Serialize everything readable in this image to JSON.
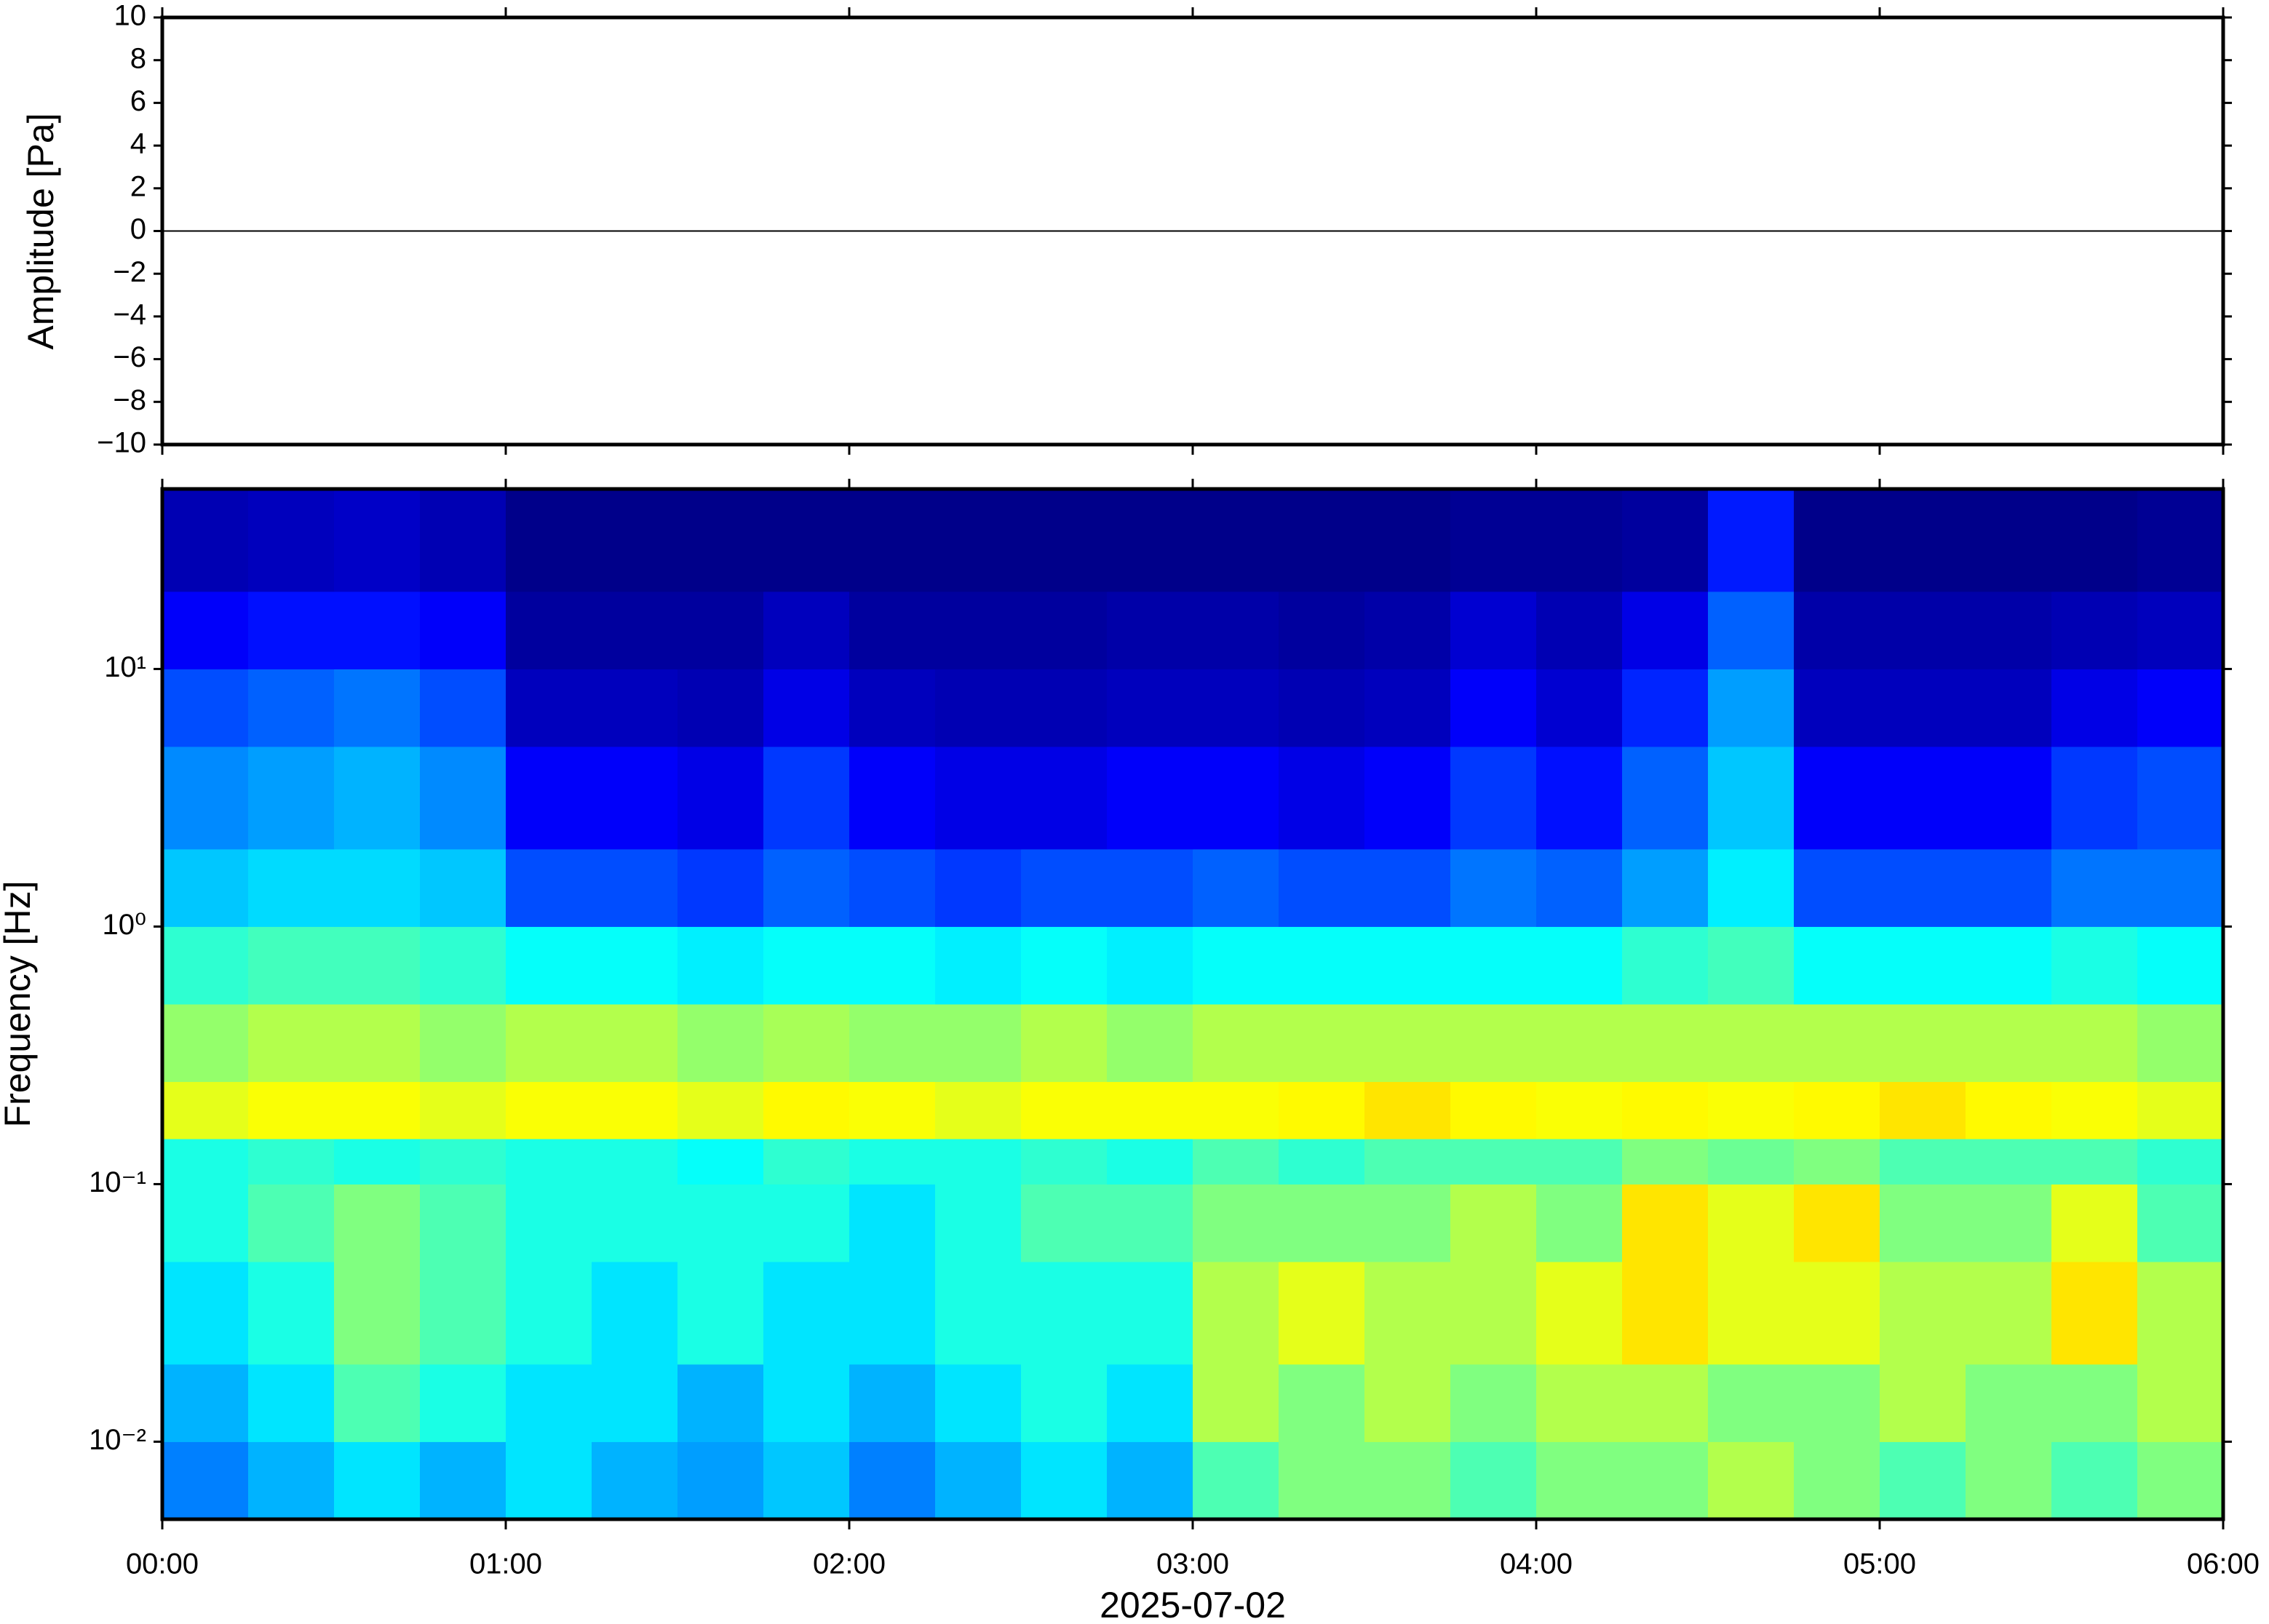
{
  "chart_data": [
    {
      "type": "line",
      "ylabel": "Amplitude [Pa]",
      "color": "#000000",
      "x": [
        0,
        0.5,
        1,
        1.5,
        2,
        2.5,
        3,
        3.5,
        4,
        4.5,
        5,
        5.5,
        6
      ],
      "values": [
        0,
        0,
        0,
        0,
        0,
        0,
        0,
        0,
        0,
        0,
        0,
        0,
        0
      ],
      "xlim": [
        0,
        6
      ],
      "ylim": [
        -10,
        10
      ],
      "yticks": [
        {
          "value": -10,
          "label": "−10"
        },
        {
          "value": -8,
          "label": "−8"
        },
        {
          "value": -6,
          "label": "−6"
        },
        {
          "value": -4,
          "label": "−4"
        },
        {
          "value": -2,
          "label": "−2"
        },
        0,
        2,
        4,
        6,
        8,
        10
      ]
    },
    {
      "type": "heatmap",
      "ylabel": "Frequency [Hz]",
      "xlabel": "2025-07-02",
      "log_y": true,
      "colormap": "jet",
      "xlim": [
        0,
        6
      ],
      "ylim": [
        0.005,
        50
      ],
      "xticks": [
        {
          "value": 0,
          "label": "00:00"
        },
        {
          "value": 1,
          "label": "01:00"
        },
        {
          "value": 2,
          "label": "02:00"
        },
        {
          "value": 3,
          "label": "03:00"
        },
        {
          "value": 4,
          "label": "04:00"
        },
        {
          "value": 5,
          "label": "05:00"
        },
        {
          "value": 6,
          "label": "06:00"
        }
      ],
      "yticks": [
        {
          "value": 0.01,
          "label": "10⁻²"
        },
        {
          "value": 0.1,
          "label": "10⁻¹"
        },
        {
          "value": 1,
          "label": "10⁰"
        },
        {
          "value": 10,
          "label": "10¹"
        }
      ],
      "x_bins": [
        0,
        0.25,
        0.5,
        0.75,
        1,
        1.25,
        1.5,
        1.75,
        2,
        2.25,
        2.5,
        2.75,
        3,
        3.25,
        3.5,
        3.75,
        4,
        4.25,
        4.5,
        4.75,
        5,
        5.25,
        5.5,
        5.75,
        6
      ],
      "y_bins": [
        0.005,
        0.01,
        0.02,
        0.05,
        0.1,
        0.15,
        0.25,
        0.5,
        1,
        2,
        5,
        10,
        20,
        50
      ],
      "values": [
        [
          0.25,
          0.3,
          0.35,
          0.3,
          0.35,
          0.3,
          0.28,
          0.32,
          0.25,
          0.3,
          0.35,
          0.3,
          0.45,
          0.5,
          0.5,
          0.45,
          0.5,
          0.5,
          0.55,
          0.5,
          0.45,
          0.5,
          0.45,
          0.5
        ],
        [
          0.3,
          0.35,
          0.45,
          0.4,
          0.35,
          0.35,
          0.3,
          0.35,
          0.3,
          0.35,
          0.4,
          0.35,
          0.55,
          0.5,
          0.55,
          0.5,
          0.55,
          0.55,
          0.5,
          0.5,
          0.55,
          0.5,
          0.5,
          0.55
        ],
        [
          0.35,
          0.4,
          0.5,
          0.45,
          0.4,
          0.35,
          0.4,
          0.35,
          0.35,
          0.4,
          0.4,
          0.4,
          0.55,
          0.6,
          0.55,
          0.55,
          0.6,
          0.65,
          0.6,
          0.6,
          0.55,
          0.55,
          0.65,
          0.55
        ],
        [
          0.4,
          0.45,
          0.5,
          0.45,
          0.4,
          0.4,
          0.4,
          0.4,
          0.35,
          0.4,
          0.45,
          0.45,
          0.5,
          0.5,
          0.5,
          0.55,
          0.5,
          0.65,
          0.6,
          0.65,
          0.5,
          0.5,
          0.6,
          0.45
        ],
        [
          0.4,
          0.42,
          0.4,
          0.42,
          0.4,
          0.4,
          0.38,
          0.42,
          0.4,
          0.4,
          0.42,
          0.4,
          0.45,
          0.42,
          0.45,
          0.45,
          0.45,
          0.5,
          0.48,
          0.5,
          0.45,
          0.45,
          0.45,
          0.42
        ],
        [
          0.6,
          0.62,
          0.62,
          0.6,
          0.62,
          0.62,
          0.6,
          0.63,
          0.62,
          0.6,
          0.62,
          0.62,
          0.62,
          0.63,
          0.65,
          0.63,
          0.62,
          0.63,
          0.62,
          0.63,
          0.65,
          0.63,
          0.62,
          0.6
        ],
        [
          0.52,
          0.55,
          0.55,
          0.52,
          0.55,
          0.55,
          0.52,
          0.54,
          0.52,
          0.52,
          0.55,
          0.52,
          0.55,
          0.55,
          0.55,
          0.55,
          0.55,
          0.55,
          0.55,
          0.55,
          0.55,
          0.55,
          0.55,
          0.52
        ],
        [
          0.42,
          0.44,
          0.44,
          0.42,
          0.38,
          0.38,
          0.36,
          0.38,
          0.38,
          0.36,
          0.38,
          0.36,
          0.38,
          0.38,
          0.38,
          0.38,
          0.38,
          0.42,
          0.44,
          0.38,
          0.38,
          0.38,
          0.4,
          0.38
        ],
        [
          0.32,
          0.34,
          0.34,
          0.32,
          0.2,
          0.2,
          0.18,
          0.22,
          0.2,
          0.18,
          0.2,
          0.2,
          0.22,
          0.2,
          0.2,
          0.24,
          0.22,
          0.28,
          0.36,
          0.2,
          0.2,
          0.2,
          0.24,
          0.24
        ],
        [
          0.26,
          0.28,
          0.3,
          0.26,
          0.12,
          0.12,
          0.1,
          0.18,
          0.12,
          0.1,
          0.1,
          0.12,
          0.12,
          0.1,
          0.12,
          0.18,
          0.14,
          0.22,
          0.32,
          0.12,
          0.12,
          0.12,
          0.18,
          0.2
        ],
        [
          0.2,
          0.22,
          0.24,
          0.2,
          0.06,
          0.06,
          0.05,
          0.1,
          0.06,
          0.05,
          0.05,
          0.06,
          0.06,
          0.05,
          0.06,
          0.12,
          0.08,
          0.16,
          0.28,
          0.06,
          0.06,
          0.06,
          0.1,
          0.12
        ],
        [
          0.12,
          0.14,
          0.14,
          0.12,
          0.03,
          0.03,
          0.03,
          0.06,
          0.03,
          0.03,
          0.03,
          0.04,
          0.04,
          0.03,
          0.04,
          0.08,
          0.05,
          0.1,
          0.22,
          0.04,
          0.04,
          0.04,
          0.05,
          0.06
        ],
        [
          0.05,
          0.06,
          0.07,
          0.05,
          0.01,
          0.01,
          0.01,
          0.01,
          0.01,
          0.01,
          0.01,
          0.01,
          0.01,
          0.01,
          0.01,
          0.02,
          0.02,
          0.03,
          0.15,
          0.01,
          0.01,
          0.01,
          0.01,
          0.02
        ]
      ]
    }
  ]
}
